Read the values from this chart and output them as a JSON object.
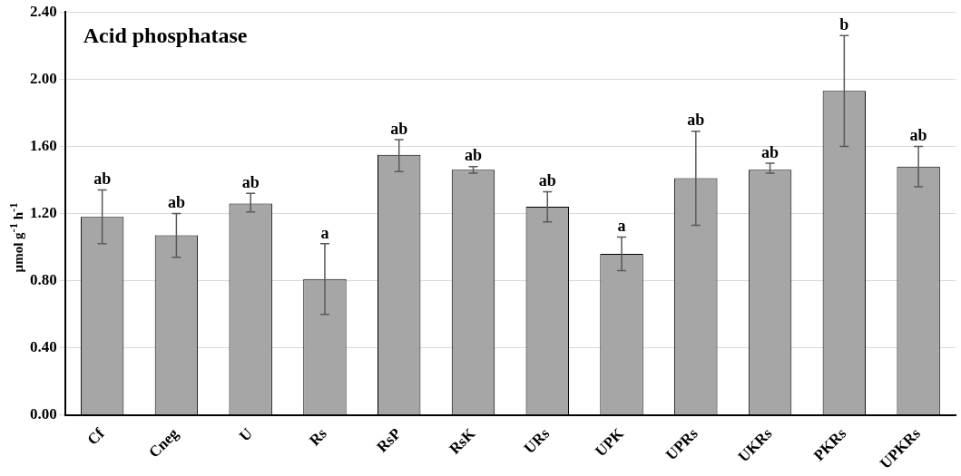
{
  "chart_data": {
    "type": "bar",
    "title": "Acid phosphatase",
    "ylabel": "µmol g$^{-1}$ h$^{-1}$",
    "categories": [
      "Cf",
      "Cneg",
      "U",
      "Rs",
      "RsP",
      "RsK",
      "URs",
      "UPK",
      "UPRs",
      "UKRs",
      "PKRs",
      "UPKRs"
    ],
    "values": [
      1.18,
      1.07,
      1.26,
      0.81,
      1.55,
      1.46,
      1.24,
      0.96,
      1.41,
      1.46,
      1.93,
      1.48
    ],
    "errors": [
      [
        1.02,
        1.34
      ],
      [
        0.94,
        1.2
      ],
      [
        1.21,
        1.32
      ],
      [
        0.6,
        1.02
      ],
      [
        1.45,
        1.64
      ],
      [
        1.44,
        1.48
      ],
      [
        1.15,
        1.33
      ],
      [
        0.86,
        1.06
      ],
      [
        1.13,
        1.69
      ],
      [
        1.44,
        1.5
      ],
      [
        1.6,
        2.26
      ],
      [
        1.36,
        1.6
      ]
    ],
    "annotations": [
      {
        "text": "ab",
        "x": "Cf",
        "y": 1.34
      },
      {
        "text": "ab",
        "x": "Cneg",
        "y": 1.2
      },
      {
        "text": "ab",
        "x": "U",
        "y": 1.32
      },
      {
        "text": "a",
        "x": "Rs",
        "y": 1.02
      },
      {
        "text": "ab",
        "x": "RsP",
        "y": 1.64
      },
      {
        "text": "ab",
        "x": "RsK",
        "y": 1.48
      },
      {
        "text": "ab",
        "x": "URs",
        "y": 1.33
      },
      {
        "text": "a",
        "x": "UPK",
        "y": 1.06
      },
      {
        "text": "ab",
        "x": "UPRs",
        "y": 1.69
      },
      {
        "text": "ab",
        "x": "UKRs",
        "y": 1.5
      },
      {
        "text": "b",
        "x": "PKRs",
        "y": 2.26
      },
      {
        "text": "ab",
        "x": "UPKRs",
        "y": 1.6
      }
    ],
    "color": "#a6a6a6",
    "ylim": [
      0,
      2.4
    ],
    "yticks": [
      {
        "value": 0,
        "label": "0.00"
      },
      {
        "value": 0.4,
        "label": "0.40"
      },
      {
        "value": 0.8,
        "label": "0.80"
      },
      {
        "value": 1.2,
        "label": "1.20"
      },
      {
        "value": 1.6,
        "label": "1.60"
      },
      {
        "value": 2.0,
        "label": "2.00"
      },
      {
        "value": 2.4,
        "label": "2.40"
      }
    ],
    "grid": "y",
    "legend": false
  }
}
